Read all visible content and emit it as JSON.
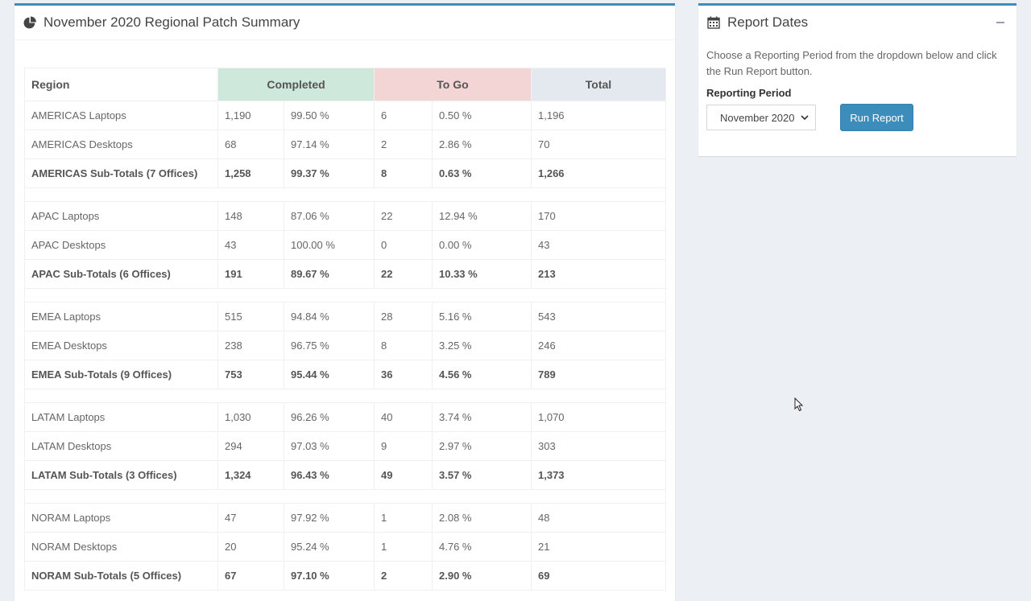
{
  "summary": {
    "title": "November 2020 Regional Patch Summary",
    "icon": "pie-chart-icon",
    "headers": {
      "region": "Region",
      "completed": "Completed",
      "togo": "To Go",
      "total": "Total"
    },
    "groups": [
      {
        "rows": [
          {
            "region": "AMERICAS Laptops",
            "c_count": "1,190",
            "c_pct": "99.50 %",
            "t_count": "6",
            "t_pct": "0.50 %",
            "total": "1,196"
          },
          {
            "region": "AMERICAS Desktops",
            "c_count": "68",
            "c_pct": "97.14 %",
            "t_count": "2",
            "t_pct": "2.86 %",
            "total": "70"
          },
          {
            "region": "AMERICAS Sub-Totals (7 Offices)",
            "c_count": "1,258",
            "c_pct": "99.37 %",
            "t_count": "8",
            "t_pct": "0.63 %",
            "total": "1,266"
          }
        ]
      },
      {
        "rows": [
          {
            "region": "APAC Laptops",
            "c_count": "148",
            "c_pct": "87.06 %",
            "t_count": "22",
            "t_pct": "12.94 %",
            "total": "170"
          },
          {
            "region": "APAC Desktops",
            "c_count": "43",
            "c_pct": "100.00 %",
            "t_count": "0",
            "t_pct": "0.00 %",
            "total": "43"
          },
          {
            "region": "APAC Sub-Totals (6 Offices)",
            "c_count": "191",
            "c_pct": "89.67 %",
            "t_count": "22",
            "t_pct": "10.33 %",
            "total": "213"
          }
        ]
      },
      {
        "rows": [
          {
            "region": "EMEA Laptops",
            "c_count": "515",
            "c_pct": "94.84 %",
            "t_count": "28",
            "t_pct": "5.16 %",
            "total": "543"
          },
          {
            "region": "EMEA Desktops",
            "c_count": "238",
            "c_pct": "96.75 %",
            "t_count": "8",
            "t_pct": "3.25 %",
            "total": "246"
          },
          {
            "region": "EMEA Sub-Totals (9 Offices)",
            "c_count": "753",
            "c_pct": "95.44 %",
            "t_count": "36",
            "t_pct": "4.56 %",
            "total": "789"
          }
        ]
      },
      {
        "rows": [
          {
            "region": "LATAM Laptops",
            "c_count": "1,030",
            "c_pct": "96.26 %",
            "t_count": "40",
            "t_pct": "3.74 %",
            "total": "1,070"
          },
          {
            "region": "LATAM Desktops",
            "c_count": "294",
            "c_pct": "97.03 %",
            "t_count": "9",
            "t_pct": "2.97 %",
            "total": "303"
          },
          {
            "region": "LATAM Sub-Totals (3 Offices)",
            "c_count": "1,324",
            "c_pct": "96.43 %",
            "t_count": "49",
            "t_pct": "3.57 %",
            "total": "1,373"
          }
        ]
      },
      {
        "rows": [
          {
            "region": "NORAM Laptops",
            "c_count": "47",
            "c_pct": "97.92 %",
            "t_count": "1",
            "t_pct": "2.08 %",
            "total": "48"
          },
          {
            "region": "NORAM Desktops",
            "c_count": "20",
            "c_pct": "95.24 %",
            "t_count": "1",
            "t_pct": "4.76 %",
            "total": "21"
          },
          {
            "region": "NORAM Sub-Totals (5 Offices)",
            "c_count": "67",
            "c_pct": "97.10 %",
            "t_count": "2",
            "t_pct": "2.90 %",
            "total": "69"
          }
        ]
      }
    ]
  },
  "report_dates": {
    "title": "Report Dates",
    "icon": "calendar-icon",
    "collapse_icon": "minus-icon",
    "description": "Choose a Reporting Period from the dropdown below and click the Run Report button.",
    "period_label": "Reporting Period",
    "selected_period": "November 2020",
    "run_button": "Run Report"
  },
  "colors": {
    "accent": "#3c8dbc",
    "completed_header": "#cfe8dc",
    "togo_header": "#f4d5d6",
    "total_header": "#e4e8ef",
    "page_bg": "#ecf0f5"
  }
}
